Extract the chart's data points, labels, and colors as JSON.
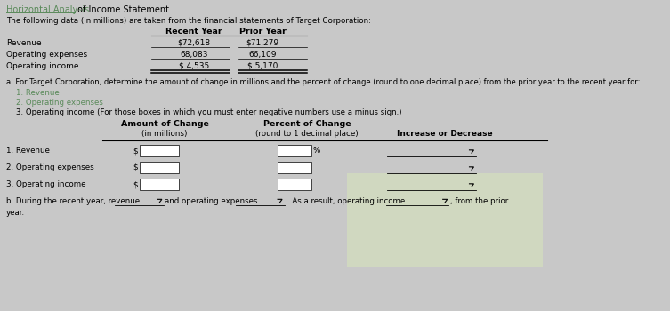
{
  "title_green": "Horizontal Analysis",
  "title_rest": " of Income Statement",
  "subtitle": "The following data (in millions) are taken from the financial statements of Target Corporation:",
  "col_headers": [
    "Recent Year",
    "Prior Year"
  ],
  "rows": [
    {
      "label": "Revenue",
      "recent": "$72,618",
      "prior": "$71,279"
    },
    {
      "label": "Operating expenses",
      "recent": "68,083",
      "prior": "66,109"
    },
    {
      "label": "Operating income",
      "recent": "$ 4,535",
      "prior": "$ 5,170"
    }
  ],
  "part_a_text": "a. For Target Corporation, determine the amount of change in millions and the percent of change (round to one decimal place) from the prior year to the recent year for:",
  "items_green": [
    "1. Revenue",
    "2. Operating expenses"
  ],
  "item3": "3. Operating income (For those boxes in which you must enter negative numbers use a minus sign.)",
  "table2_rows": [
    "1. Revenue",
    "2. Operating expenses",
    "3. Operating income"
  ],
  "part_b_text1": "b. During the recent year, revenue",
  "part_b_text2": "and operating expenses",
  "part_b_text3": ". As a result, operating income",
  "part_b_text4": ", from the prior",
  "part_b_text5": "year.",
  "bg_color": "#c8c8c8",
  "white": "#ffffff",
  "black": "#000000",
  "green": "#5a8a5a",
  "hatch_bg": "#d0d8c0",
  "hatch_color": "#a8b898"
}
